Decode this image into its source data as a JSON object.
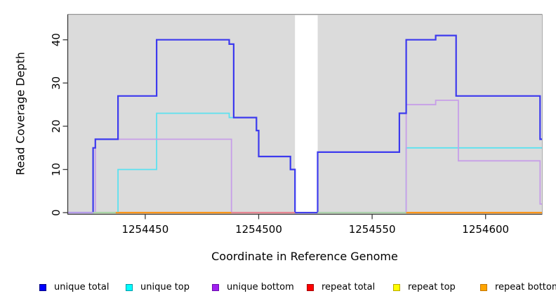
{
  "figure": {
    "background": "#ffffff"
  },
  "chart_data": {
    "type": "step",
    "title": "",
    "xlabel": "Coordinate in Reference Genome",
    "ylabel": "Read Coverage Depth",
    "xlim": [
      1254416,
      1254625
    ],
    "ylim": [
      0,
      45.8
    ],
    "xticks": [
      1254450,
      1254500,
      1254550,
      1254600
    ],
    "yticks": [
      0,
      10,
      20,
      30,
      40
    ],
    "grid": false,
    "legend_position": "bottom",
    "plot_bg": "#DBDBDB",
    "axis_color": "#3C3C3C",
    "box_top_color": "#949494",
    "box_right_color": "#ABABAB",
    "gap_region": {
      "x0": 1254516,
      "x1": 1254526,
      "color": "#FFFFFF"
    },
    "series": [
      {
        "id": "unique-total",
        "legend_label": "unique total",
        "legend_color": "#0000FF",
        "legend_border": "#000080",
        "line_color": "#3D3AEE",
        "line_width": 2.2,
        "points": [
          [
            1254416,
            0
          ],
          [
            1254427,
            15
          ],
          [
            1254428,
            17
          ],
          [
            1254438,
            27
          ],
          [
            1254455,
            40
          ],
          [
            1254487,
            39
          ],
          [
            1254489,
            22
          ],
          [
            1254499,
            19
          ],
          [
            1254500,
            13
          ],
          [
            1254514,
            10
          ],
          [
            1254516,
            0
          ],
          [
            1254526,
            14
          ],
          [
            1254562,
            23
          ],
          [
            1254565,
            40
          ],
          [
            1254578,
            41
          ],
          [
            1254587,
            27
          ],
          [
            1254624,
            17
          ],
          [
            1254625,
            17
          ]
        ]
      },
      {
        "id": "unique-top",
        "legend_label": "unique top",
        "legend_color": "#00FFFF",
        "legend_border": "#009AA8",
        "line_color": "#5CE1F0",
        "line_width": 1.8,
        "points": [
          [
            1254416,
            0
          ],
          [
            1254438,
            10
          ],
          [
            1254455,
            23
          ],
          [
            1254487,
            22
          ],
          [
            1254499,
            19
          ],
          [
            1254500,
            13
          ],
          [
            1254514,
            10
          ],
          [
            1254516,
            0
          ],
          [
            1254565,
            15
          ],
          [
            1254625,
            15
          ]
        ]
      },
      {
        "id": "unique-bottom",
        "legend_label": "unique bottom",
        "legend_color": "#A020F0",
        "legend_border": "#6A0DAD",
        "line_color": "#C79EE8",
        "line_width": 1.8,
        "points": [
          [
            1254416,
            0
          ],
          [
            1254428,
            17
          ],
          [
            1254488,
            0
          ],
          [
            1254565,
            25
          ],
          [
            1254578,
            26
          ],
          [
            1254588,
            12
          ],
          [
            1254624,
            2
          ],
          [
            1254625,
            2
          ]
        ]
      },
      {
        "id": "repeat-total",
        "legend_label": "repeat total",
        "legend_color": "#FF0000",
        "legend_border": "#A40000",
        "line_color": "#E05060",
        "line_width": 1.8,
        "points": [
          [
            1254416,
            0
          ],
          [
            1254625,
            0
          ]
        ]
      },
      {
        "id": "repeat-top",
        "legend_label": "repeat top",
        "legend_color": "#FFFF00",
        "legend_border": "#B8A800",
        "line_color": "#E8E84A",
        "line_width": 1.8,
        "points": [
          [
            1254416,
            0
          ],
          [
            1254625,
            0
          ]
        ]
      },
      {
        "id": "repeat-bottom",
        "legend_label": "repeat bottom",
        "legend_color": "#FFA500",
        "legend_border": "#C47600",
        "line_color": "#FF9414",
        "line_width": 1.8,
        "points": [
          [
            1254416,
            0
          ],
          [
            1254625,
            0
          ]
        ]
      }
    ],
    "baseline_segments": [
      {
        "x0": 1254416,
        "x1": 1254427,
        "color": "#C4A8EA"
      },
      {
        "x0": 1254427,
        "x1": 1254437,
        "color": "#ABD8AB"
      },
      {
        "x0": 1254437,
        "x1": 1254488,
        "color": "#FF9414"
      },
      {
        "x0": 1254488,
        "x1": 1254516,
        "color": "#E88293"
      },
      {
        "x0": 1254526,
        "x1": 1254565,
        "color": "#ABD8AB"
      },
      {
        "x0": 1254565,
        "x1": 1254625,
        "color": "#FF9414"
      }
    ]
  }
}
